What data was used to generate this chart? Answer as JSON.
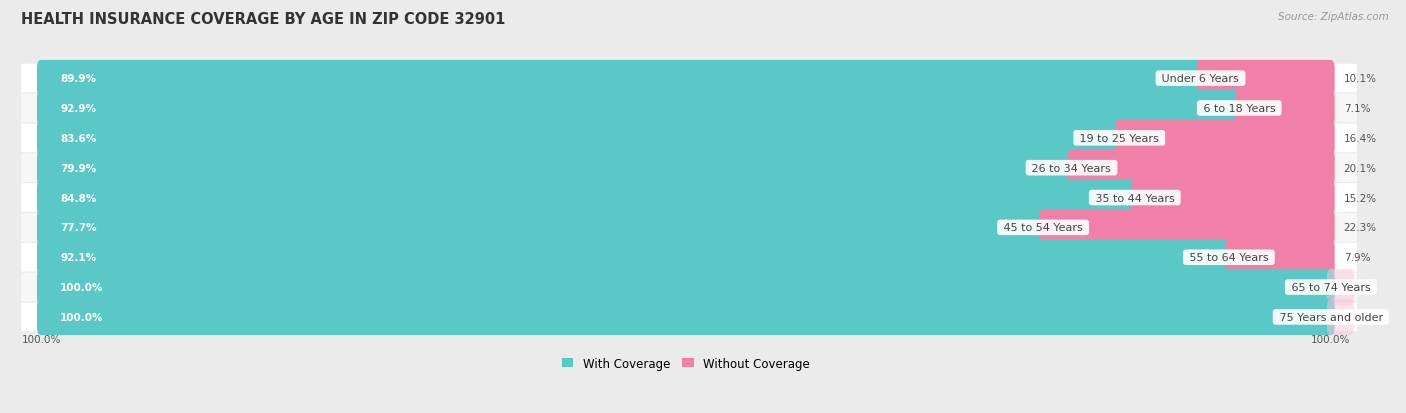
{
  "title": "HEALTH INSURANCE COVERAGE BY AGE IN ZIP CODE 32901",
  "source": "Source: ZipAtlas.com",
  "categories": [
    "Under 6 Years",
    "6 to 18 Years",
    "19 to 25 Years",
    "26 to 34 Years",
    "35 to 44 Years",
    "45 to 54 Years",
    "55 to 64 Years",
    "65 to 74 Years",
    "75 Years and older"
  ],
  "with_coverage": [
    89.9,
    92.9,
    83.6,
    79.9,
    84.8,
    77.7,
    92.1,
    100.0,
    100.0
  ],
  "without_coverage": [
    10.1,
    7.1,
    16.4,
    20.1,
    15.2,
    22.3,
    7.9,
    0.0,
    0.0
  ],
  "color_with": "#5BC8C8",
  "color_without": "#F080A8",
  "bg_color": "#EBEBEB",
  "row_bg_odd": "#F7F7F7",
  "row_bg_even": "#FFFFFF",
  "title_fontsize": 10.5,
  "label_fontsize": 8.0,
  "bar_label_fontsize": 7.5,
  "legend_fontsize": 8.5,
  "source_fontsize": 7.5,
  "left_axis_pct": "100.0%",
  "right_axis_pct": "100.0%"
}
